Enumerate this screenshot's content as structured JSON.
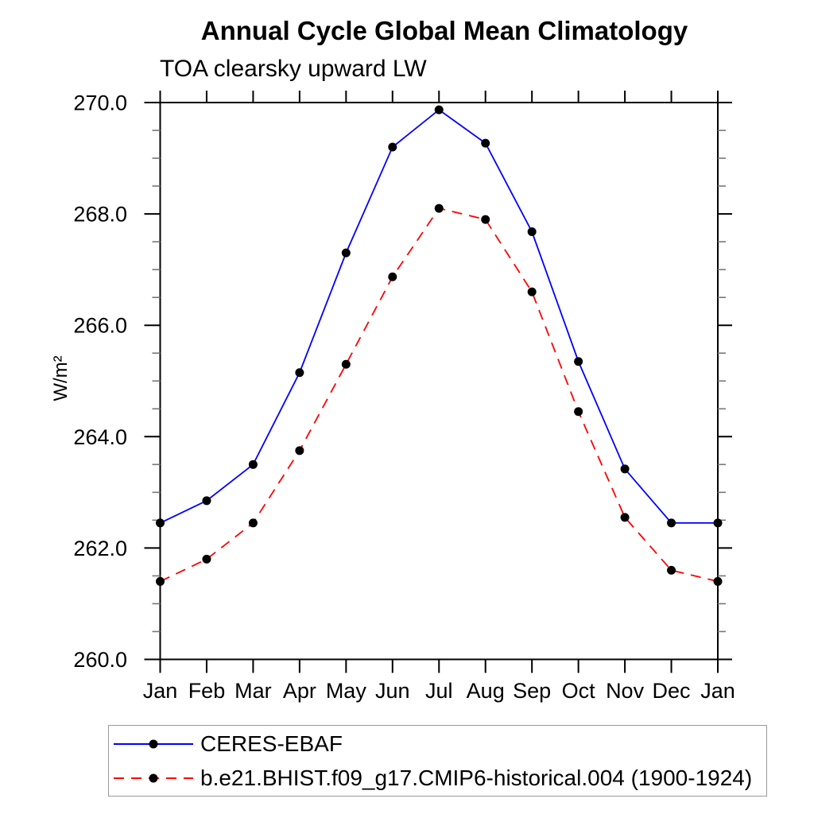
{
  "chart_data": {
    "type": "line",
    "title": "Annual Cycle Global Mean Climatology",
    "subtitle": "TOA clearsky upward LW",
    "ylabel": "W/m²",
    "xlabel": "",
    "x_categories": [
      "Jan",
      "Feb",
      "Mar",
      "Apr",
      "May",
      "Jun",
      "Jul",
      "Aug",
      "Sep",
      "Oct",
      "Nov",
      "Dec",
      "Jan"
    ],
    "ylim": [
      260.0,
      270.0
    ],
    "y_major_tick_step": 2.0,
    "y_minor_tick_step": 0.5,
    "y_tick_labels": [
      "260.0",
      "262.0",
      "264.0",
      "266.0",
      "268.0",
      "270.0"
    ],
    "grid": "off",
    "legend_position": "bottom",
    "axis_color": "#000000",
    "marker": "filled-circle",
    "marker_color": "#000000",
    "series": [
      {
        "name": "CERES-EBAF",
        "color": "#0000ff",
        "line_style": "solid",
        "values": [
          262.45,
          262.85,
          263.5,
          265.15,
          267.3,
          269.2,
          269.87,
          269.27,
          267.68,
          265.35,
          263.42,
          262.45,
          262.45
        ]
      },
      {
        "name": "b.e21.BHIST.f09_g17.CMIP6-historical.004 (1900-1924)",
        "color": "#ff0000",
        "line_style": "dashed",
        "values": [
          261.4,
          261.8,
          262.45,
          263.75,
          265.3,
          266.87,
          268.1,
          267.9,
          266.6,
          264.45,
          262.55,
          261.6,
          261.4
        ]
      }
    ]
  }
}
